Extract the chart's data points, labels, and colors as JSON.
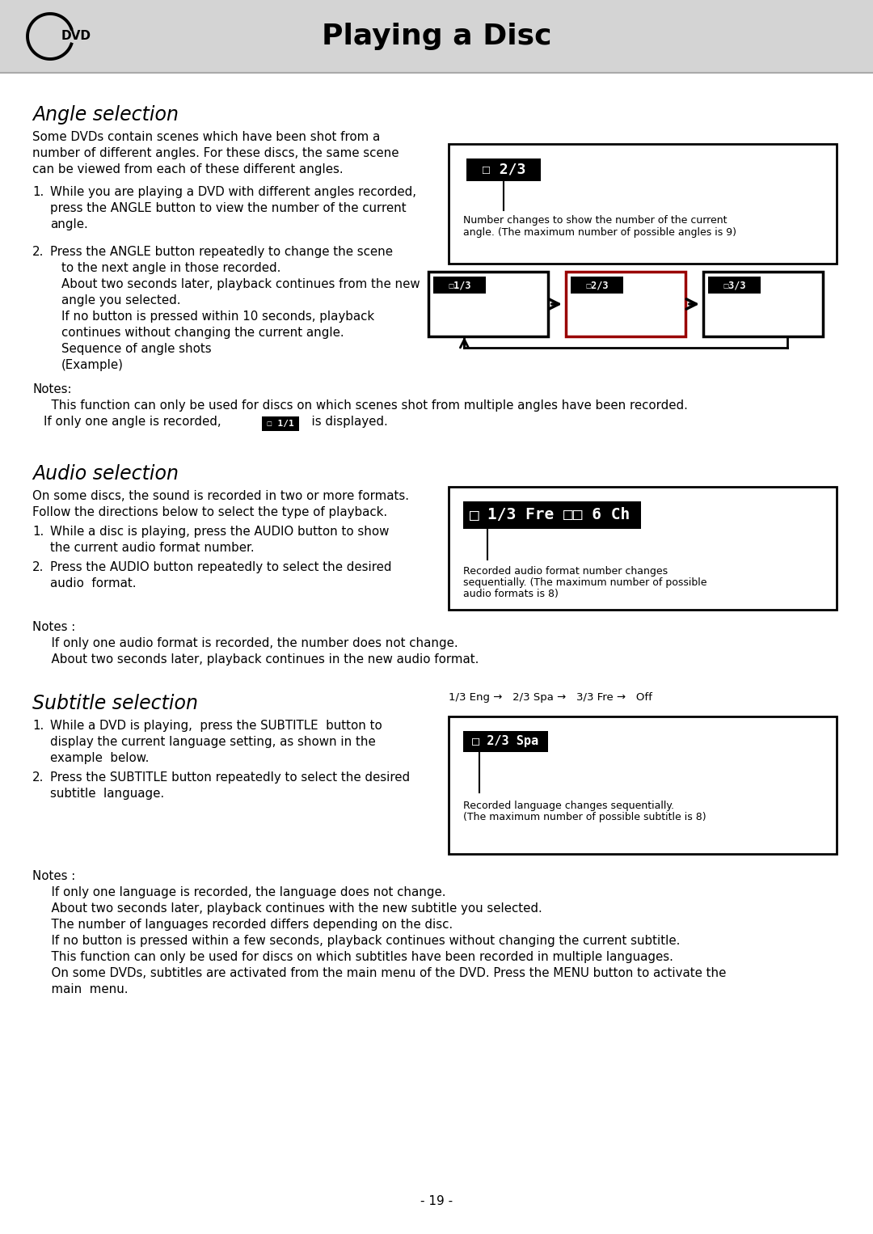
{
  "page_title": "Playing a Disc",
  "bg_color": "#ffffff",
  "header_bg": "#d4d4d4",
  "section1_title": "Angle selection",
  "section1_para1_lines": [
    "Some DVDs contain scenes which have been shot from a",
    "number of different angles. For these discs, the same scene",
    "can be viewed from each of these different angles."
  ],
  "s1_item1_lines": [
    "While you are playing a DVD with different angles recorded,",
    "press the ANGLE button to view the number of the current",
    "angle."
  ],
  "s1_item2_lines": [
    "Press the ANGLE button repeatedly to change the scene",
    "to the next angle in those recorded.",
    "About two seconds later, playback continues from the new",
    "angle you selected.",
    "If no button is pressed within 10 seconds, playback",
    "continues without changing the current angle.",
    "Sequence of angle shots",
    "(Example)"
  ],
  "angle_box1_caption": "Number changes to show the number of the current\nangle. (The maximum number of possible angles is 9)",
  "angle_seq_labels": [
    "1/3",
    "2/3",
    "3/3"
  ],
  "s1_notes_lines": [
    "Notes:",
    "  This function can only be used for discs on which scenes shot from multiple angles have been recorded.",
    "  If only one angle is recorded,       1/1   is displayed."
  ],
  "section2_title": "Audio selection",
  "section2_para1_lines": [
    "On some discs, the sound is recorded in two or more formats.",
    "Follow the directions below to select the type of playback."
  ],
  "s2_item1_lines": [
    "While a disc is playing, press the AUDIO button to show",
    "the current audio format number."
  ],
  "s2_item2_lines": [
    "Press the AUDIO button repeatedly to select the desired",
    "audio  format."
  ],
  "audio_osd_text": "1/3 Fre □□ 6 Ch",
  "audio_box_caption": "Recorded audio format number changes\nsequentially. (The maximum number of possible\naudio formats is 8)",
  "s2_notes_lines": [
    "Notes :",
    "  If only one audio format is recorded, the number does not change.",
    "  About two seconds later, playback continues in the new audio format."
  ],
  "section3_title": "Subtitle selection",
  "subtitle_seq_text": "1/3 Eng →   2/3 Spa →   3/3 Fre →   Off",
  "s3_item1_lines": [
    "While a DVD is playing,  press the SUBTITLE  button to",
    "display the current language setting, as shown in the",
    "example  below."
  ],
  "s3_item2_lines": [
    "Press the SUBTITLE button repeatedly to select the desired",
    "subtitle  language."
  ],
  "subtitle_osd_text": "2/3 Spa",
  "subtitle_box_caption": "Recorded language changes sequentially.\n(The maximum number of possible subtitle is 8)",
  "s3_notes_lines": [
    "Notes :",
    "  If only one language is recorded, the language does not change.",
    "  About two seconds later, playback continues with the new subtitle you selected.",
    "  The number of languages recorded differs depending on the disc.",
    "  If no button is pressed within a few seconds, playback continues without changing the current subtitle.",
    "  This function can only be used for discs on which subtitles have been recorded in multiple languages.",
    "  On some DVDs, subtitles are activated from the main menu of the DVD. Press the MENU button to activate the",
    "  main  menu."
  ],
  "page_number": "- 19 -"
}
